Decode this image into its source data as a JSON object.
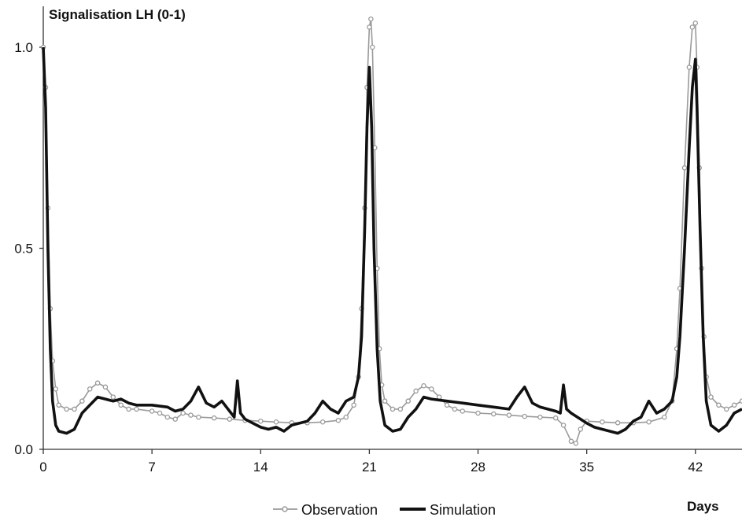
{
  "chart_data": {
    "type": "line",
    "ylabel": "Signalisation LH (0-1)",
    "xlabel": "Days",
    "xlim": [
      0,
      45
    ],
    "ylim": [
      0,
      1
    ],
    "xticks": [
      0,
      7,
      14,
      21,
      28,
      35,
      42
    ],
    "yticks": [
      {
        "value": 0,
        "label": "0.0"
      },
      {
        "value": 0.5,
        "label": "0.5"
      },
      {
        "value": 1,
        "label": "1.0"
      }
    ],
    "grid": false,
    "legend": "bottom",
    "series": [
      {
        "name": "Observation",
        "color": "#9a9a9a",
        "marker": "circle",
        "points": [
          [
            0,
            1.0
          ],
          [
            0.15,
            0.9
          ],
          [
            0.3,
            0.6
          ],
          [
            0.45,
            0.35
          ],
          [
            0.6,
            0.22
          ],
          [
            0.8,
            0.15
          ],
          [
            1.0,
            0.11
          ],
          [
            1.5,
            0.1
          ],
          [
            2.0,
            0.1
          ],
          [
            2.5,
            0.12
          ],
          [
            3.0,
            0.15
          ],
          [
            3.5,
            0.165
          ],
          [
            4.0,
            0.155
          ],
          [
            4.5,
            0.13
          ],
          [
            5.0,
            0.11
          ],
          [
            5.5,
            0.1
          ],
          [
            6.0,
            0.1
          ],
          [
            7.0,
            0.095
          ],
          [
            7.5,
            0.09
          ],
          [
            8.0,
            0.08
          ],
          [
            8.5,
            0.075
          ],
          [
            9.0,
            0.09
          ],
          [
            9.5,
            0.085
          ],
          [
            10.0,
            0.08
          ],
          [
            11.0,
            0.078
          ],
          [
            12.0,
            0.075
          ],
          [
            13.0,
            0.072
          ],
          [
            14.0,
            0.07
          ],
          [
            15.0,
            0.068
          ],
          [
            16.0,
            0.066
          ],
          [
            17.0,
            0.066
          ],
          [
            18.0,
            0.068
          ],
          [
            19.0,
            0.072
          ],
          [
            19.5,
            0.08
          ],
          [
            20.0,
            0.11
          ],
          [
            20.3,
            0.18
          ],
          [
            20.5,
            0.35
          ],
          [
            20.7,
            0.6
          ],
          [
            20.85,
            0.9
          ],
          [
            21.0,
            1.05
          ],
          [
            21.1,
            1.07
          ],
          [
            21.2,
            1.0
          ],
          [
            21.35,
            0.75
          ],
          [
            21.5,
            0.45
          ],
          [
            21.65,
            0.25
          ],
          [
            21.8,
            0.16
          ],
          [
            22.0,
            0.12
          ],
          [
            22.5,
            0.1
          ],
          [
            23.0,
            0.1
          ],
          [
            23.5,
            0.12
          ],
          [
            24.0,
            0.145
          ],
          [
            24.5,
            0.158
          ],
          [
            25.0,
            0.15
          ],
          [
            25.5,
            0.13
          ],
          [
            26.0,
            0.11
          ],
          [
            26.5,
            0.1
          ],
          [
            27.0,
            0.095
          ],
          [
            28.0,
            0.09
          ],
          [
            29.0,
            0.088
          ],
          [
            30.0,
            0.085
          ],
          [
            31.0,
            0.082
          ],
          [
            32.0,
            0.08
          ],
          [
            33.0,
            0.078
          ],
          [
            33.5,
            0.06
          ],
          [
            34.0,
            0.02
          ],
          [
            34.3,
            0.015
          ],
          [
            34.6,
            0.05
          ],
          [
            35.0,
            0.07
          ],
          [
            36.0,
            0.068
          ],
          [
            37.0,
            0.066
          ],
          [
            38.0,
            0.066
          ],
          [
            39.0,
            0.068
          ],
          [
            40.0,
            0.08
          ],
          [
            40.5,
            0.12
          ],
          [
            40.8,
            0.25
          ],
          [
            41.0,
            0.4
          ],
          [
            41.3,
            0.7
          ],
          [
            41.6,
            0.95
          ],
          [
            41.8,
            1.05
          ],
          [
            42.0,
            1.06
          ],
          [
            42.1,
            0.95
          ],
          [
            42.25,
            0.7
          ],
          [
            42.4,
            0.45
          ],
          [
            42.55,
            0.28
          ],
          [
            42.7,
            0.18
          ],
          [
            43.0,
            0.13
          ],
          [
            43.5,
            0.11
          ],
          [
            44.0,
            0.1
          ],
          [
            44.5,
            0.11
          ],
          [
            45.0,
            0.12
          ]
        ]
      },
      {
        "name": "Simulation",
        "color": "#111111",
        "marker": "none",
        "points": [
          [
            0,
            1.0
          ],
          [
            0.15,
            0.85
          ],
          [
            0.3,
            0.5
          ],
          [
            0.45,
            0.25
          ],
          [
            0.6,
            0.12
          ],
          [
            0.8,
            0.06
          ],
          [
            1.0,
            0.045
          ],
          [
            1.5,
            0.04
          ],
          [
            2.0,
            0.05
          ],
          [
            2.5,
            0.09
          ],
          [
            3.0,
            0.11
          ],
          [
            3.5,
            0.13
          ],
          [
            4.0,
            0.125
          ],
          [
            4.5,
            0.12
          ],
          [
            5.0,
            0.125
          ],
          [
            5.5,
            0.115
          ],
          [
            6.0,
            0.11
          ],
          [
            7.0,
            0.11
          ],
          [
            8.0,
            0.105
          ],
          [
            8.5,
            0.095
          ],
          [
            9.0,
            0.1
          ],
          [
            9.5,
            0.12
          ],
          [
            10.0,
            0.155
          ],
          [
            10.5,
            0.115
          ],
          [
            11.0,
            0.105
          ],
          [
            11.5,
            0.12
          ],
          [
            12.0,
            0.095
          ],
          [
            12.3,
            0.08
          ],
          [
            12.5,
            0.17
          ],
          [
            12.7,
            0.09
          ],
          [
            13.0,
            0.075
          ],
          [
            14.0,
            0.055
          ],
          [
            14.5,
            0.05
          ],
          [
            15.0,
            0.055
          ],
          [
            15.5,
            0.045
          ],
          [
            16.0,
            0.06
          ],
          [
            16.5,
            0.065
          ],
          [
            17.0,
            0.07
          ],
          [
            17.5,
            0.09
          ],
          [
            18.0,
            0.12
          ],
          [
            18.5,
            0.1
          ],
          [
            19.0,
            0.09
          ],
          [
            19.5,
            0.12
          ],
          [
            20.0,
            0.13
          ],
          [
            20.3,
            0.18
          ],
          [
            20.5,
            0.28
          ],
          [
            20.7,
            0.55
          ],
          [
            20.85,
            0.8
          ],
          [
            21.0,
            0.95
          ],
          [
            21.15,
            0.8
          ],
          [
            21.3,
            0.5
          ],
          [
            21.5,
            0.25
          ],
          [
            21.7,
            0.12
          ],
          [
            22.0,
            0.06
          ],
          [
            22.5,
            0.045
          ],
          [
            23.0,
            0.05
          ],
          [
            23.5,
            0.08
          ],
          [
            24.0,
            0.1
          ],
          [
            24.5,
            0.13
          ],
          [
            25.0,
            0.125
          ],
          [
            26.0,
            0.12
          ],
          [
            27.0,
            0.115
          ],
          [
            28.0,
            0.11
          ],
          [
            29.0,
            0.105
          ],
          [
            30.0,
            0.1
          ],
          [
            30.5,
            0.13
          ],
          [
            31.0,
            0.155
          ],
          [
            31.5,
            0.115
          ],
          [
            32.0,
            0.105
          ],
          [
            32.5,
            0.1
          ],
          [
            33.0,
            0.095
          ],
          [
            33.3,
            0.09
          ],
          [
            33.5,
            0.16
          ],
          [
            33.7,
            0.1
          ],
          [
            34.0,
            0.09
          ],
          [
            35.0,
            0.065
          ],
          [
            35.5,
            0.055
          ],
          [
            36.0,
            0.05
          ],
          [
            37.0,
            0.04
          ],
          [
            37.5,
            0.05
          ],
          [
            38.0,
            0.07
          ],
          [
            38.5,
            0.08
          ],
          [
            39.0,
            0.12
          ],
          [
            39.5,
            0.09
          ],
          [
            40.0,
            0.1
          ],
          [
            40.5,
            0.12
          ],
          [
            40.8,
            0.18
          ],
          [
            41.0,
            0.28
          ],
          [
            41.3,
            0.5
          ],
          [
            41.6,
            0.75
          ],
          [
            41.8,
            0.9
          ],
          [
            42.0,
            0.97
          ],
          [
            42.1,
            0.85
          ],
          [
            42.3,
            0.55
          ],
          [
            42.5,
            0.28
          ],
          [
            42.7,
            0.12
          ],
          [
            43.0,
            0.06
          ],
          [
            43.5,
            0.045
          ],
          [
            44.0,
            0.06
          ],
          [
            44.5,
            0.09
          ],
          [
            45.0,
            0.1
          ]
        ]
      }
    ]
  }
}
